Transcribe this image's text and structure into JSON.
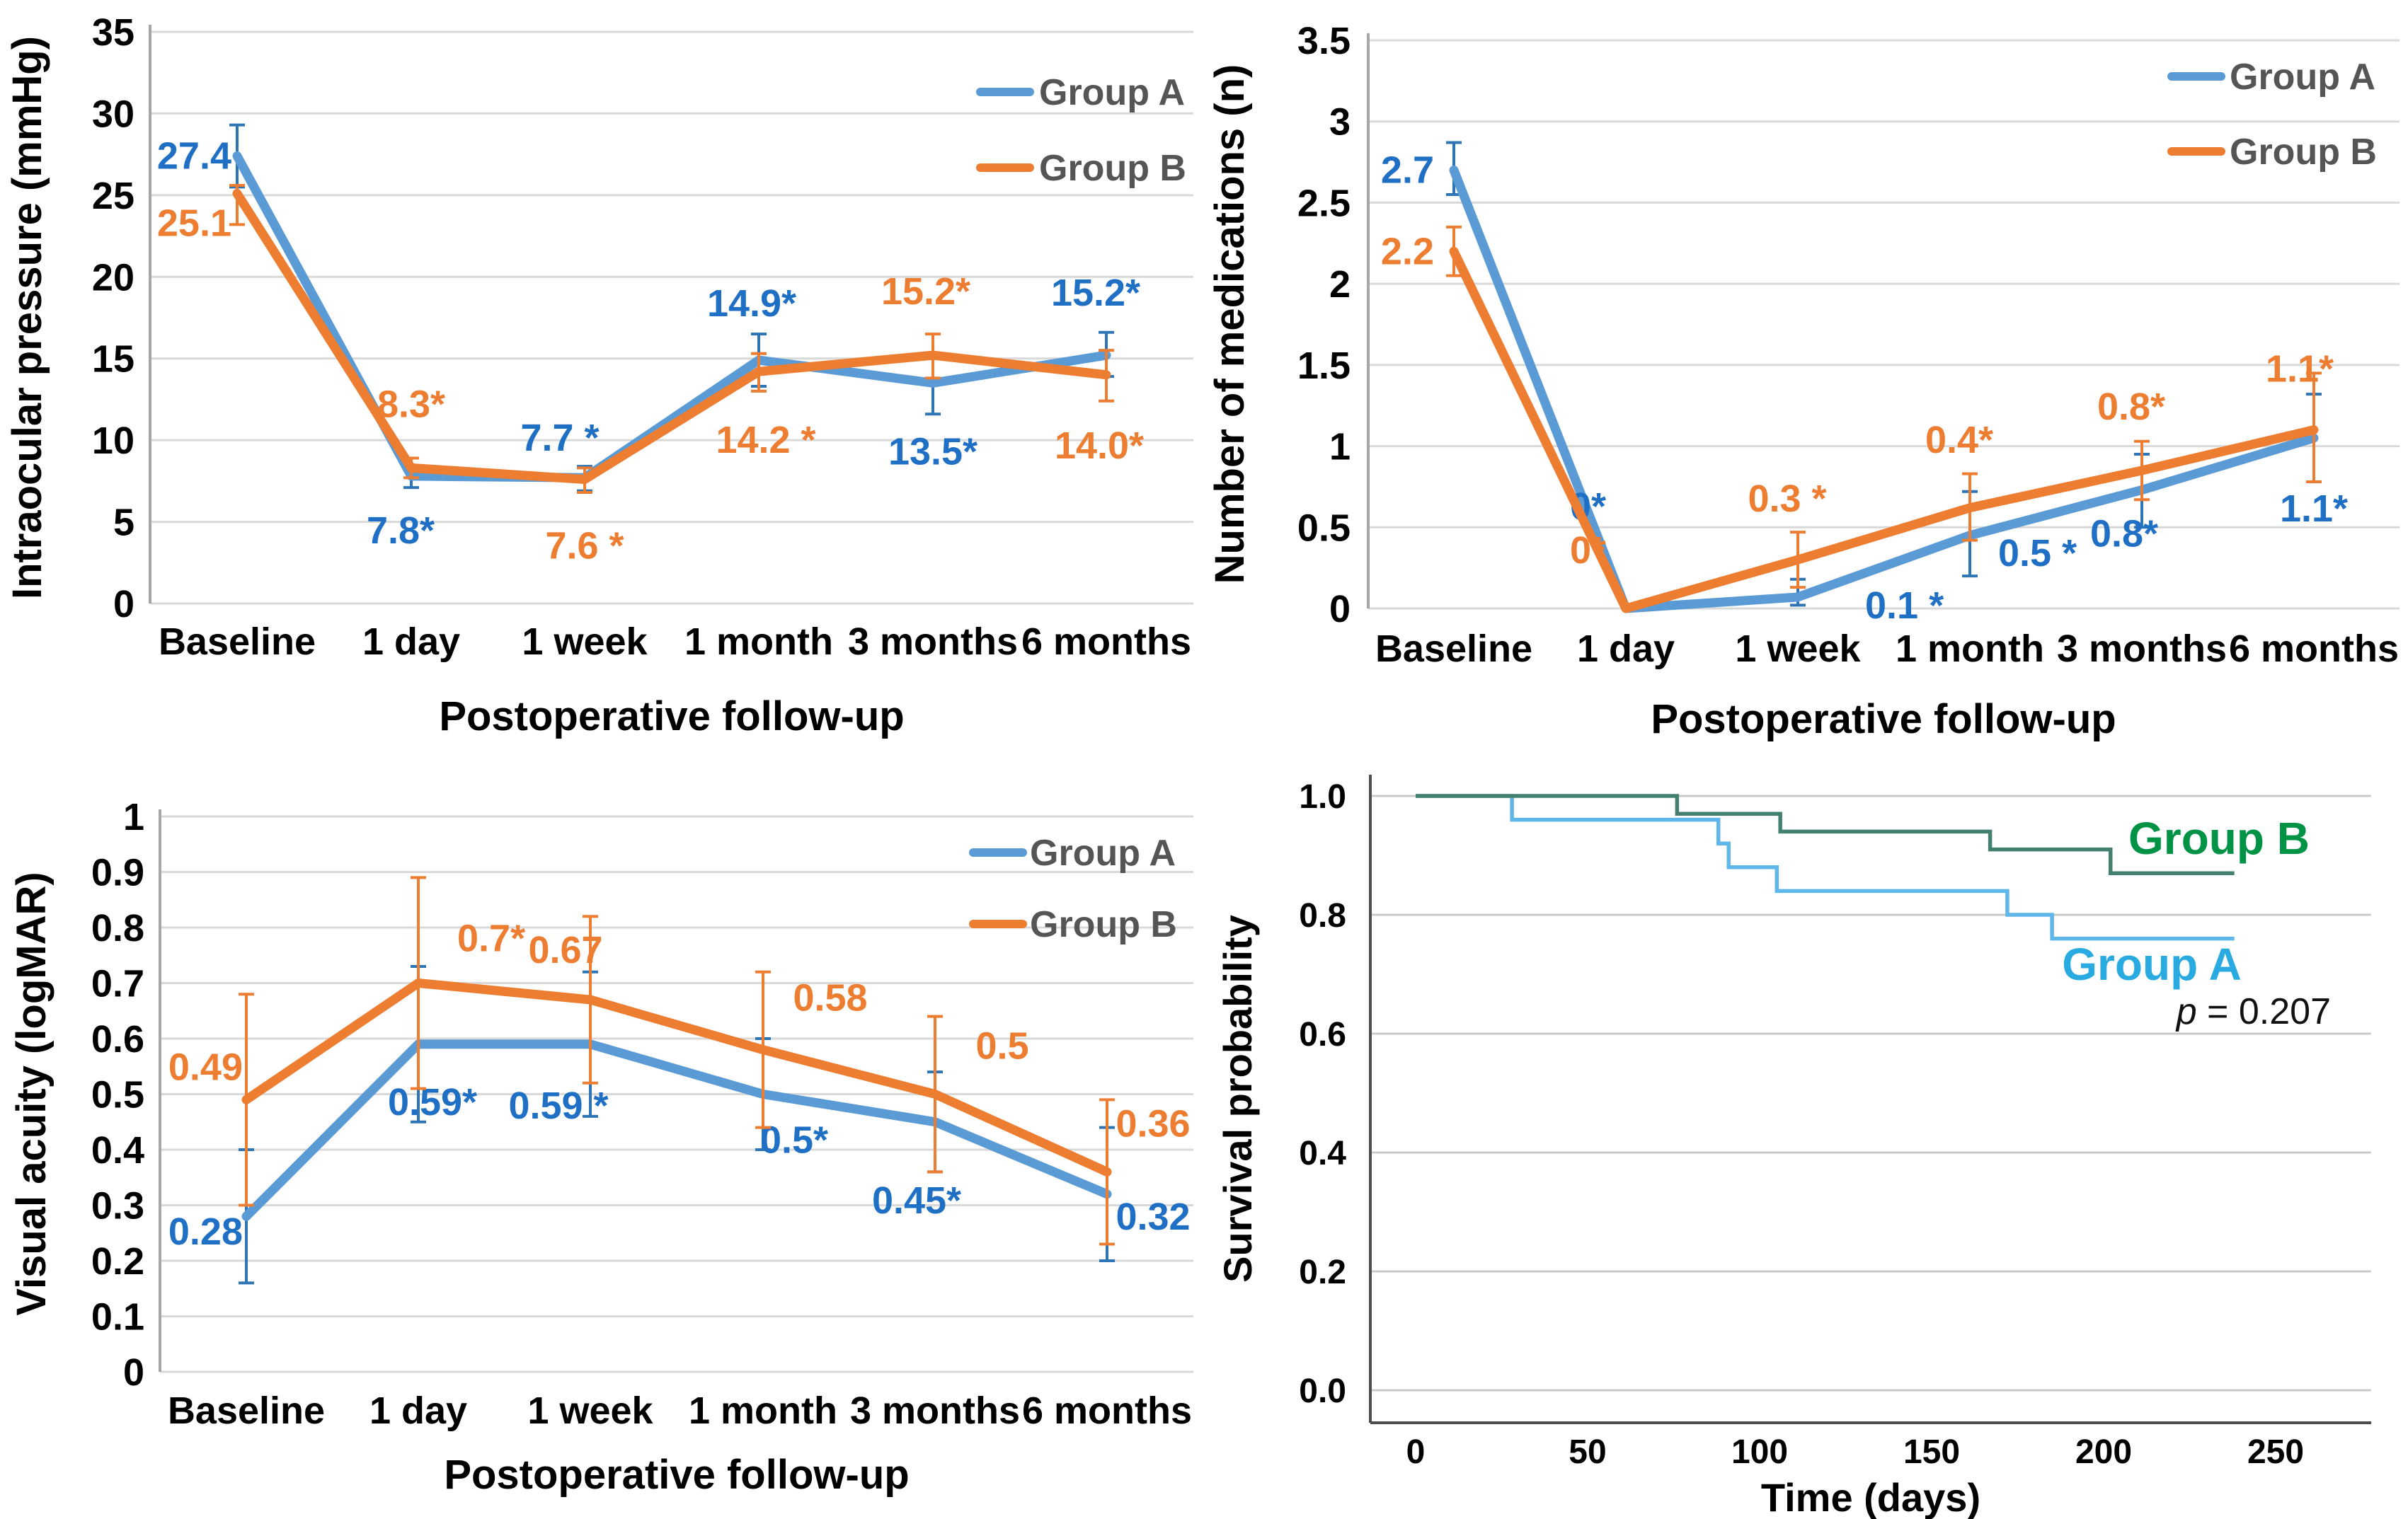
{
  "figure": {
    "background": "#ffffff",
    "legend_text_color": "#555555",
    "tick_text_color": "#000000",
    "gridline_color": "#D9D9D9",
    "axis_line_color": "#A6A6A6"
  },
  "chart_data": [
    {
      "id": "iop",
      "type": "line",
      "ylabel": "Intraocular pressure (mmHg)",
      "xlabel": "Postoperative follow-up",
      "ylim": [
        0,
        35
      ],
      "grid": true,
      "legend_position": "top-right-inside",
      "categories": [
        "Baseline",
        "1 day",
        "1 week",
        "1 month",
        "3 months",
        "6 months"
      ],
      "y_ticks": [
        {
          "v": 0,
          "t": "0"
        },
        {
          "v": 5,
          "t": "5"
        },
        {
          "v": 10,
          "t": "10"
        },
        {
          "v": 15,
          "t": "15"
        },
        {
          "v": 20,
          "t": "20"
        },
        {
          "v": 25,
          "t": "25"
        },
        {
          "v": 30,
          "t": "30"
        },
        {
          "v": 35,
          "t": "35"
        }
      ],
      "series": [
        {
          "name": "Group A",
          "color": "#5B9BD5",
          "label_color": "#1F6FC5",
          "err_color": "#2E75B6",
          "values": [
            27.4,
            7.8,
            7.7,
            14.9,
            13.5,
            15.2
          ],
          "labels": [
            "27.4",
            "7.8*",
            "7.7 *",
            "14.9*",
            "13.5*",
            "15.2*"
          ],
          "err_lo": [
            25.5,
            7.1,
            6.9,
            13.3,
            11.6,
            13.9
          ],
          "err_hi": [
            29.3,
            8.3,
            8.4,
            16.5,
            15.3,
            16.6
          ],
          "label_offsets": [
            [
              -8,
              18,
              "e"
            ],
            [
              -15,
              95,
              "m"
            ],
            [
              -35,
              -38,
              "m"
            ],
            [
              -10,
              -62,
              "m"
            ],
            [
              0,
              115,
              "m"
            ],
            [
              -15,
              -70,
              "m"
            ]
          ]
        },
        {
          "name": "Group B",
          "color": "#ED7D31",
          "label_color": "#ED7D31",
          "err_color": "#ED7D31",
          "values": [
            25.1,
            8.3,
            7.6,
            14.2,
            15.2,
            14.0
          ],
          "labels": [
            "25.1",
            "8.3*",
            "7.6 *",
            "14.2 *",
            "15.2*",
            "14.0*"
          ],
          "err_lo": [
            23.2,
            7.7,
            6.8,
            13.0,
            13.8,
            12.4
          ],
          "err_hi": [
            25.6,
            8.9,
            8.3,
            15.3,
            16.5,
            15.5
          ],
          "label_offsets": [
            [
              -8,
              60,
              "e"
            ],
            [
              0,
              -72,
              "m"
            ],
            [
              0,
              112,
              "m"
            ],
            [
              10,
              115,
              "m"
            ],
            [
              -10,
              -72,
              "m"
            ],
            [
              -10,
              118,
              "m"
            ]
          ]
        }
      ]
    },
    {
      "id": "meds",
      "type": "line",
      "ylabel": "Number of medications (n)",
      "xlabel": "Postoperative follow-up",
      "ylim": [
        0,
        3.5
      ],
      "grid": true,
      "legend_position": "top-right-inside",
      "categories": [
        "Baseline",
        "1 day",
        "1 week",
        "1 month",
        "3 months",
        "6 months"
      ],
      "y_ticks": [
        {
          "v": 0,
          "t": "0"
        },
        {
          "v": 0.5,
          "t": "0.5"
        },
        {
          "v": 1,
          "t": "1"
        },
        {
          "v": 1.5,
          "t": "1.5"
        },
        {
          "v": 2,
          "t": "2"
        },
        {
          "v": 2.5,
          "t": "2.5"
        },
        {
          "v": 3,
          "t": "3"
        },
        {
          "v": 3.5,
          "t": "3.5"
        }
      ],
      "series": [
        {
          "name": "Group A",
          "color": "#5B9BD5",
          "label_color": "#1F6FC5",
          "err_color": "#2E75B6",
          "values": [
            2.7,
            0,
            0.1,
            0.5,
            0.8,
            1.1
          ],
          "plot_values": [
            2.7,
            0,
            0.07,
            0.45,
            0.73,
            1.05
          ],
          "labels": [
            "2.7",
            "0*",
            "0.1 *",
            "0.5 *",
            "0.8*",
            "1.1*"
          ],
          "err_lo": [
            2.55,
            null,
            0.02,
            0.2,
            0.5,
            0.78
          ],
          "err_hi": [
            2.87,
            null,
            0.18,
            0.72,
            0.95,
            1.32
          ],
          "label_offsets": [
            [
              -28,
              18,
              "e"
            ],
            [
              -28,
              -126,
              "e"
            ],
            [
              95,
              30,
              "s"
            ],
            [
              40,
              43,
              "s"
            ],
            [
              -25,
              80,
              "m"
            ],
            [
              0,
              118,
              "m"
            ]
          ]
        },
        {
          "name": "Group B",
          "color": "#ED7D31",
          "label_color": "#ED7D31",
          "err_color": "#ED7D31",
          "values": [
            2.2,
            0,
            0.3,
            0.4,
            0.8,
            1.1
          ],
          "plot_values": [
            2.2,
            0,
            0.3,
            0.62,
            0.85,
            1.1
          ],
          "labels": [
            "2.2",
            "0*",
            "0.3 *",
            "0.4*",
            "0.8*",
            "1.1*"
          ],
          "err_lo": [
            2.05,
            null,
            0.13,
            0.42,
            0.67,
            0.78
          ],
          "err_hi": [
            2.35,
            null,
            0.47,
            0.83,
            1.03,
            1.45
          ],
          "label_offsets": [
            [
              -28,
              18,
              "e"
            ],
            [
              -28,
              -64,
              "e"
            ],
            [
              -15,
              -68,
              "m"
            ],
            [
              -15,
              -78,
              "m"
            ],
            [
              -15,
              -72,
              "m"
            ],
            [
              -20,
              -68,
              "m"
            ]
          ]
        }
      ]
    },
    {
      "id": "va",
      "type": "line",
      "ylabel": "Visual acuity (logMAR)",
      "xlabel": "Postoperative follow-up",
      "ylim": [
        0,
        1
      ],
      "grid": true,
      "legend_position": "top-right-inside",
      "categories": [
        "Baseline",
        "1 day",
        "1 week",
        "1 month",
        "3 months",
        "6 months"
      ],
      "y_ticks": [
        {
          "v": 0,
          "t": "0"
        },
        {
          "v": 0.1,
          "t": "0.1"
        },
        {
          "v": 0.2,
          "t": "0.2"
        },
        {
          "v": 0.3,
          "t": "0.3"
        },
        {
          "v": 0.4,
          "t": "0.4"
        },
        {
          "v": 0.5,
          "t": "0.5"
        },
        {
          "v": 0.6,
          "t": "0.6"
        },
        {
          "v": 0.7,
          "t": "0.7"
        },
        {
          "v": 0.8,
          "t": "0.8"
        },
        {
          "v": 0.9,
          "t": "0.9"
        },
        {
          "v": 1,
          "t": "1"
        }
      ],
      "series": [
        {
          "name": "Group A",
          "color": "#5B9BD5",
          "label_color": "#1F6FC5",
          "err_color": "#2E75B6",
          "values": [
            0.28,
            0.59,
            0.59,
            0.5,
            0.45,
            0.32
          ],
          "labels": [
            "0.28",
            "0.59*",
            "0.59 *",
            "0.5*",
            "0.45*",
            "0.32"
          ],
          "err_lo": [
            0.16,
            0.45,
            0.46,
            0.4,
            0.36,
            0.2
          ],
          "err_hi": [
            0.4,
            0.73,
            0.72,
            0.6,
            0.54,
            0.44
          ],
          "label_offsets": [
            [
              -5,
              40,
              "e"
            ],
            [
              20,
              100,
              "m"
            ],
            [
              -45,
              105,
              "m"
            ],
            [
              44,
              83,
              "m"
            ],
            [
              -26,
              129,
              "m"
            ],
            [
              65,
              50,
              "m"
            ]
          ]
        },
        {
          "name": "Group B",
          "color": "#ED7D31",
          "label_color": "#ED7D31",
          "err_color": "#ED7D31",
          "values": [
            0.49,
            0.7,
            0.67,
            0.58,
            0.5,
            0.36
          ],
          "labels": [
            "0.49",
            "0.7*",
            "0.67",
            "0.58",
            "0.5",
            "0.36"
          ],
          "err_lo": [
            0.3,
            0.51,
            0.52,
            0.44,
            0.36,
            0.23
          ],
          "err_hi": [
            0.68,
            0.89,
            0.82,
            0.72,
            0.64,
            0.49
          ],
          "label_offsets": [
            [
              -5,
              -28,
              "e"
            ],
            [
              55,
              -45,
              "s"
            ],
            [
              -35,
              -52,
              "m"
            ],
            [
              95,
              -55,
              "m"
            ],
            [
              95,
              -50,
              "m"
            ],
            [
              65,
              -50,
              "m"
            ]
          ]
        }
      ]
    },
    {
      "id": "survival",
      "type": "step",
      "ylabel": "Survival probability",
      "xlabel": "Time (days)",
      "ylim": [
        0,
        1.0
      ],
      "xlim": [
        0,
        250
      ],
      "grid": true,
      "p_value": {
        "symbol": "p",
        "rest": " = 0.207"
      },
      "x_ticks": [
        {
          "v": 0,
          "t": "0"
        },
        {
          "v": 50,
          "t": "50"
        },
        {
          "v": 100,
          "t": "100"
        },
        {
          "v": 150,
          "t": "150"
        },
        {
          "v": 200,
          "t": "200"
        },
        {
          "v": 250,
          "t": "250"
        }
      ],
      "y_ticks": [
        {
          "v": 0,
          "t": "0.0"
        },
        {
          "v": 0.2,
          "t": "0.2"
        },
        {
          "v": 0.4,
          "t": "0.4"
        },
        {
          "v": 0.6,
          "t": "0.6"
        },
        {
          "v": 0.8,
          "t": "0.8"
        },
        {
          "v": 1.0,
          "t": "1.0"
        }
      ],
      "series": [
        {
          "name": "Group A",
          "color": "#5FB6E8",
          "label_color": "#29ABE2",
          "steps": [
            [
              0,
              1.0
            ],
            [
              28,
              1.0
            ],
            [
              28,
              0.96
            ],
            [
              88,
              0.96
            ],
            [
              88,
              0.92
            ],
            [
              91,
              0.92
            ],
            [
              91,
              0.88
            ],
            [
              105,
              0.88
            ],
            [
              105,
              0.84
            ],
            [
              172,
              0.84
            ],
            [
              172,
              0.8
            ],
            [
              185,
              0.8
            ],
            [
              185,
              0.76
            ],
            [
              238,
              0.76
            ]
          ]
        },
        {
          "name": "Group B",
          "color": "#44806F",
          "label_color": "#009245",
          "steps": [
            [
              0,
              1.0
            ],
            [
              76,
              1.0
            ],
            [
              76,
              0.97
            ],
            [
              106,
              0.97
            ],
            [
              106,
              0.94
            ],
            [
              167,
              0.94
            ],
            [
              167,
              0.91
            ],
            [
              202,
              0.91
            ],
            [
              202,
              0.87
            ],
            [
              238,
              0.87
            ]
          ]
        }
      ]
    }
  ]
}
